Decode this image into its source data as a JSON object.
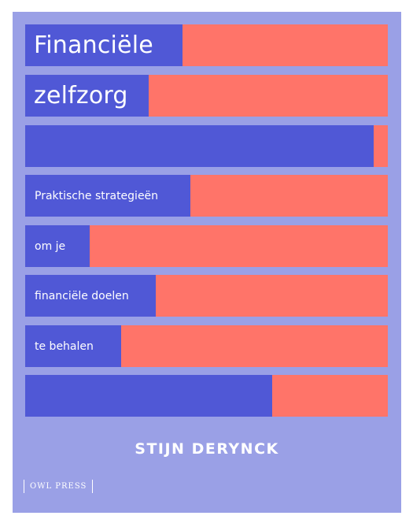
{
  "cover": {
    "title_line_1": "Financiële",
    "title_line_2": "zelfzorg",
    "subtitle_line_1": "Praktische strategieën",
    "subtitle_line_2": "om je",
    "subtitle_line_3": "financiële doelen",
    "subtitle_line_4": "te behalen",
    "author": "STIJN DERYNCK",
    "publisher": "OWL PRESS"
  },
  "colors": {
    "background": "#9aa0e6",
    "bar_fill": "#5058d6",
    "bar_track": "#ff7469",
    "text": "#ffffff"
  }
}
